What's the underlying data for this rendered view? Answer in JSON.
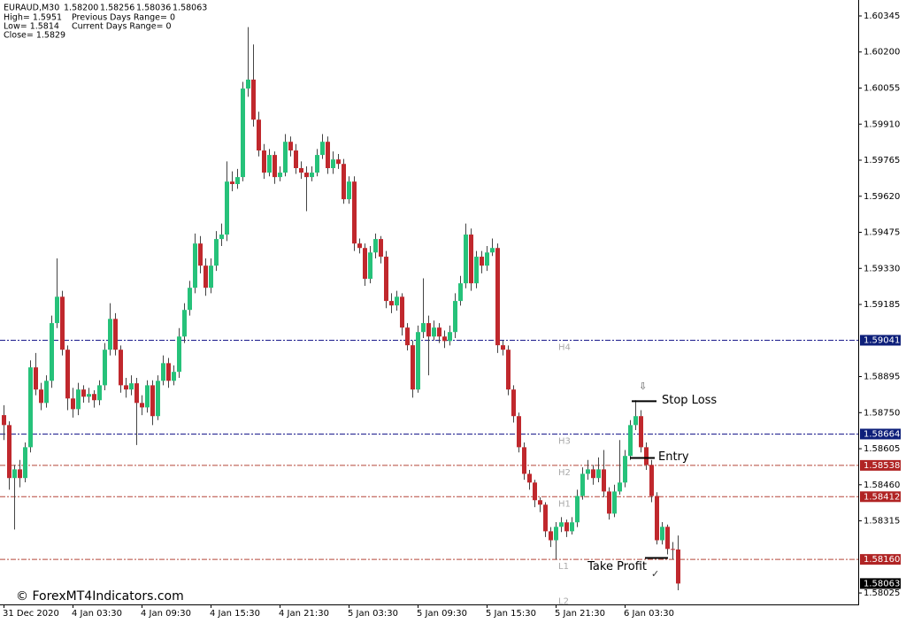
{
  "chart_data": {
    "type": "candlestick",
    "header": {
      "symbol": "EURAUD,M30",
      "ohlc_labels": [
        "1.58200",
        "1.58256",
        "1.58036",
        "1.58063"
      ],
      "info_left": [
        "High= 1.5951",
        "Low= 1.5814",
        "Close= 1.5829"
      ],
      "info_right": [
        "Previous Days Range= 0",
        "Current Days Range= 0"
      ]
    },
    "watermark": "© ForexMT4Indicators.com",
    "up_color": "#26c27a",
    "down_color": "#c0282d",
    "ylim": [
      1.57979,
      1.60409
    ],
    "yticks": [
      {
        "value": 1.60345,
        "label": "1.60345"
      },
      {
        "value": 1.602,
        "label": "1.60200"
      },
      {
        "value": 1.60055,
        "label": "1.60055"
      },
      {
        "value": 1.5991,
        "label": "1.59910"
      },
      {
        "value": 1.59765,
        "label": "1.59765"
      },
      {
        "value": 1.5962,
        "label": "1.59620"
      },
      {
        "value": 1.59475,
        "label": "1.59475"
      },
      {
        "value": 1.5933,
        "label": "1.59330"
      },
      {
        "value": 1.59185,
        "label": "1.59185"
      },
      {
        "value": 1.58895,
        "label": "1.58895"
      },
      {
        "value": 1.5875,
        "label": "1.58750"
      },
      {
        "value": 1.58605,
        "label": "1.58605"
      },
      {
        "value": 1.5846,
        "label": "1.58460"
      },
      {
        "value": 1.58315,
        "label": "1.58315"
      },
      {
        "value": 1.58025,
        "label": "1.58025"
      }
    ],
    "levels": [
      {
        "name": "H4",
        "value": 1.59041,
        "value_label": "1.59041",
        "color": "#1a1a8c",
        "label_color": "#0d1f7a"
      },
      {
        "name": "H3",
        "value": 1.58664,
        "value_label": "1.58664",
        "color": "#1a1a8c",
        "label_color": "#0d1f7a"
      },
      {
        "name": "H2",
        "value": 1.58538,
        "value_label": "1.58538",
        "color": "#b5473a",
        "label_color": "#b02424"
      },
      {
        "name": "H1",
        "value": 1.58412,
        "value_label": "1.58412",
        "color": "#b5473a",
        "label_color": "#b02424"
      },
      {
        "name": "L1",
        "value": 1.5816,
        "value_label": "1.58160",
        "color": "#b5473a",
        "label_color": "#b02424"
      },
      {
        "name": "L2",
        "value": 1.5802,
        "show_line": false
      }
    ],
    "current_price": {
      "value": 1.58063,
      "label": "1.58063",
      "color": "#000000"
    },
    "annotations": [
      {
        "text": "Stop Loss",
        "price": 1.58796
      },
      {
        "text": "Entry",
        "price": 1.58568
      },
      {
        "text": "Take Profit",
        "price": 1.58166
      }
    ],
    "categories": [
      "31 Dec 2020",
      null,
      null,
      null,
      null,
      null,
      null,
      null,
      null,
      null,
      null,
      null,
      null,
      "4 Jan 03:30",
      null,
      null,
      null,
      null,
      null,
      null,
      null,
      null,
      null,
      null,
      null,
      null,
      "4 Jan 09:30",
      null,
      null,
      null,
      null,
      null,
      null,
      null,
      null,
      null,
      null,
      null,
      null,
      "4 Jan 15:30",
      null,
      null,
      null,
      null,
      null,
      null,
      null,
      null,
      null,
      null,
      null,
      null,
      "4 Jan 21:30",
      null,
      null,
      null,
      null,
      null,
      null,
      null,
      null,
      null,
      null,
      null,
      null,
      "5 Jan 03:30",
      null,
      null,
      null,
      null,
      null,
      null,
      null,
      null,
      null,
      null,
      null,
      null,
      "5 Jan 09:30",
      null,
      null,
      null,
      null,
      null,
      null,
      null,
      null,
      null,
      null,
      null,
      null,
      "5 Jan 15:30",
      null,
      null,
      null,
      null,
      null,
      null,
      null,
      null,
      null,
      null,
      null,
      null,
      "5 Jan 21:30",
      null,
      null,
      null,
      null,
      null,
      null,
      null,
      null,
      null,
      null,
      null,
      null,
      "6 Jan 03:30",
      null,
      null,
      null,
      null,
      null,
      null,
      null,
      null,
      null,
      null
    ],
    "ohlc": [
      [
        1.5874,
        1.5878,
        1.5864,
        1.587
      ],
      [
        1.587,
        1.58715,
        1.5844,
        1.58487
      ],
      [
        1.58487,
        1.5854,
        1.5828,
        1.58522
      ],
      [
        1.58522,
        1.5856,
        1.5845,
        1.58487
      ],
      [
        1.58487,
        1.5863,
        1.5847,
        1.58611
      ],
      [
        1.58611,
        1.5896,
        1.5859,
        1.58932
      ],
      [
        1.58932,
        1.5899,
        1.5882,
        1.58843
      ],
      [
        1.58843,
        1.5887,
        1.5876,
        1.58789
      ],
      [
        1.58789,
        1.589,
        1.5877,
        1.58878
      ],
      [
        1.58878,
        1.5914,
        1.5885,
        1.5911
      ],
      [
        1.5911,
        1.5937,
        1.5909,
        1.59216
      ],
      [
        1.59216,
        1.5924,
        1.5898,
        1.59003
      ],
      [
        1.59003,
        1.5902,
        1.5876,
        1.58807
      ],
      [
        1.58807,
        1.5885,
        1.5873,
        1.58764
      ],
      [
        1.58764,
        1.5887,
        1.5874,
        1.58843
      ],
      [
        1.58843,
        1.5886,
        1.5879,
        1.58814
      ],
      [
        1.58814,
        1.5885,
        1.5879,
        1.58825
      ],
      [
        1.58825,
        1.5884,
        1.5877,
        1.588
      ],
      [
        1.588,
        1.5888,
        1.5878,
        1.5886
      ],
      [
        1.5886,
        1.5903,
        1.5884,
        1.59003
      ],
      [
        1.59003,
        1.5919,
        1.5898,
        1.59127
      ],
      [
        1.59127,
        1.5915,
        1.5898,
        1.59003
      ],
      [
        1.59003,
        1.5902,
        1.5883,
        1.5886
      ],
      [
        1.5886,
        1.5889,
        1.5881,
        1.58843
      ],
      [
        1.58843,
        1.589,
        1.5882,
        1.58868
      ],
      [
        1.58868,
        1.5889,
        1.5862,
        1.58789
      ],
      [
        1.58789,
        1.5882,
        1.5874,
        1.58771
      ],
      [
        1.58771,
        1.5888,
        1.5875,
        1.5886
      ],
      [
        1.5886,
        1.5888,
        1.587,
        1.58736
      ],
      [
        1.58736,
        1.589,
        1.5872,
        1.58878
      ],
      [
        1.58878,
        1.5898,
        1.5886,
        1.58949
      ],
      [
        1.58949,
        1.5897,
        1.5885,
        1.58878
      ],
      [
        1.58878,
        1.5894,
        1.5886,
        1.58914
      ],
      [
        1.58914,
        1.5909,
        1.5889,
        1.59056
      ],
      [
        1.59056,
        1.5919,
        1.5903,
        1.59163
      ],
      [
        1.59163,
        1.5928,
        1.5914,
        1.59252
      ],
      [
        1.59252,
        1.5947,
        1.5923,
        1.5943
      ],
      [
        1.5943,
        1.5946,
        1.5931,
        1.59341
      ],
      [
        1.59341,
        1.5937,
        1.5922,
        1.59252
      ],
      [
        1.59252,
        1.5937,
        1.5923,
        1.59341
      ],
      [
        1.59341,
        1.5948,
        1.5932,
        1.59448
      ],
      [
        1.59448,
        1.5951,
        1.5942,
        1.59466
      ],
      [
        1.59466,
        1.5976,
        1.5944,
        1.59679
      ],
      [
        1.59679,
        1.5972,
        1.5964,
        1.59669
      ],
      [
        1.59669,
        1.5973,
        1.5965,
        1.59697
      ],
      [
        1.59697,
        1.6008,
        1.5968,
        1.60053
      ],
      [
        1.60053,
        1.603,
        1.6002,
        1.60089
      ],
      [
        1.60089,
        1.6023,
        1.599,
        1.59928
      ],
      [
        1.59928,
        1.5996,
        1.5978,
        1.59804
      ],
      [
        1.59804,
        1.5983,
        1.5969,
        1.59715
      ],
      [
        1.59715,
        1.5981,
        1.597,
        1.59786
      ],
      [
        1.59786,
        1.598,
        1.5967,
        1.59697
      ],
      [
        1.59697,
        1.5974,
        1.5968,
        1.59715
      ],
      [
        1.59715,
        1.5987,
        1.597,
        1.59839
      ],
      [
        1.59839,
        1.5986,
        1.5978,
        1.59804
      ],
      [
        1.59804,
        1.5983,
        1.5971,
        1.59733
      ],
      [
        1.59733,
        1.5976,
        1.5969,
        1.59715
      ],
      [
        1.59715,
        1.5974,
        1.5956,
        1.59697
      ],
      [
        1.59697,
        1.5974,
        1.5968,
        1.59715
      ],
      [
        1.59715,
        1.5981,
        1.597,
        1.59786
      ],
      [
        1.59786,
        1.5987,
        1.5977,
        1.59839
      ],
      [
        1.59839,
        1.5986,
        1.5971,
        1.59733
      ],
      [
        1.59733,
        1.598,
        1.5971,
        1.59768
      ],
      [
        1.59768,
        1.5979,
        1.5973,
        1.5975
      ],
      [
        1.5975,
        1.5977,
        1.5959,
        1.59608
      ],
      [
        1.59608,
        1.597,
        1.5959,
        1.59679
      ],
      [
        1.59679,
        1.597,
        1.594,
        1.5943
      ],
      [
        1.5943,
        1.5945,
        1.5939,
        1.59412
      ],
      [
        1.59412,
        1.5943,
        1.5926,
        1.59288
      ],
      [
        1.59288,
        1.5942,
        1.5927,
        1.59394
      ],
      [
        1.59394,
        1.5947,
        1.5937,
        1.59448
      ],
      [
        1.59448,
        1.5946,
        1.5935,
        1.59377
      ],
      [
        1.59377,
        1.594,
        1.5917,
        1.59199
      ],
      [
        1.59199,
        1.5923,
        1.5915,
        1.59181
      ],
      [
        1.59181,
        1.5924,
        1.5916,
        1.59216
      ],
      [
        1.59216,
        1.5923,
        1.5906,
        1.59092
      ],
      [
        1.59092,
        1.5911,
        1.59,
        1.59021
      ],
      [
        1.59021,
        1.5904,
        1.5881,
        1.58843
      ],
      [
        1.58843,
        1.591,
        1.5883,
        1.59074
      ],
      [
        1.59074,
        1.5929,
        1.5905,
        1.5911
      ],
      [
        1.5911,
        1.5914,
        1.589,
        1.59056
      ],
      [
        1.59056,
        1.5912,
        1.5904,
        1.59092
      ],
      [
        1.59092,
        1.5911,
        1.5903,
        1.59056
      ],
      [
        1.59056,
        1.5908,
        1.5901,
        1.59038
      ],
      [
        1.59038,
        1.591,
        1.5902,
        1.59074
      ],
      [
        1.59074,
        1.5923,
        1.5905,
        1.59199
      ],
      [
        1.59199,
        1.593,
        1.5918,
        1.5927
      ],
      [
        1.5927,
        1.5951,
        1.5925,
        1.59466
      ],
      [
        1.59466,
        1.5949,
        1.5924,
        1.5927
      ],
      [
        1.5927,
        1.594,
        1.5925,
        1.59377
      ],
      [
        1.59377,
        1.594,
        1.5931,
        1.59341
      ],
      [
        1.59341,
        1.5942,
        1.5932,
        1.59394
      ],
      [
        1.59394,
        1.5945,
        1.5938,
        1.59412
      ],
      [
        1.59412,
        1.5943,
        1.5899,
        1.59021
      ],
      [
        1.59021,
        1.5904,
        1.5898,
        1.59003
      ],
      [
        1.59003,
        1.5902,
        1.5882,
        1.58843
      ],
      [
        1.58843,
        1.5886,
        1.5871,
        1.58736
      ],
      [
        1.58736,
        1.5875,
        1.5859,
        1.58611
      ],
      [
        1.58611,
        1.5863,
        1.5848,
        1.58504
      ],
      [
        1.58504,
        1.5852,
        1.5844,
        1.58469
      ],
      [
        1.58469,
        1.5848,
        1.5837,
        1.58398
      ],
      [
        1.58398,
        1.5841,
        1.5835,
        1.5838
      ],
      [
        1.5838,
        1.5839,
        1.5825,
        1.58273
      ],
      [
        1.58273,
        1.5829,
        1.5821,
        1.58237
      ],
      [
        1.58237,
        1.5831,
        1.5816,
        1.58291
      ],
      [
        1.58291,
        1.5833,
        1.5827,
        1.58309
      ],
      [
        1.58309,
        1.5832,
        1.5825,
        1.58273
      ],
      [
        1.58273,
        1.5833,
        1.5826,
        1.58309
      ],
      [
        1.58309,
        1.5844,
        1.5829,
        1.58415
      ],
      [
        1.58415,
        1.5853,
        1.584,
        1.58504
      ],
      [
        1.58504,
        1.5856,
        1.5848,
        1.58522
      ],
      [
        1.58522,
        1.5854,
        1.5846,
        1.58487
      ],
      [
        1.58487,
        1.5857,
        1.5847,
        1.58522
      ],
      [
        1.58522,
        1.586,
        1.5841,
        1.58433
      ],
      [
        1.58433,
        1.5845,
        1.5832,
        1.58344
      ],
      [
        1.58344,
        1.5846,
        1.5833,
        1.58433
      ],
      [
        1.58433,
        1.5864,
        1.5842,
        1.58469
      ],
      [
        1.58469,
        1.586,
        1.5845,
        1.58576
      ],
      [
        1.58576,
        1.5872,
        1.5856,
        1.587
      ],
      [
        1.587,
        1.588,
        1.5868,
        1.58736
      ],
      [
        1.58736,
        1.5876,
        1.5859,
        1.58611
      ],
      [
        1.58611,
        1.5863,
        1.5852,
        1.5854
      ],
      [
        1.5854,
        1.5856,
        1.5839,
        1.58415
      ],
      [
        1.58415,
        1.5843,
        1.5822,
        1.58237
      ],
      [
        1.58237,
        1.5831,
        1.5822,
        1.58291
      ],
      [
        1.58291,
        1.583,
        1.5818,
        1.58202
      ],
      [
        1.58202,
        1.5823,
        1.5816,
        1.582
      ],
      [
        1.582,
        1.58256,
        1.58036,
        1.58063
      ]
    ]
  }
}
